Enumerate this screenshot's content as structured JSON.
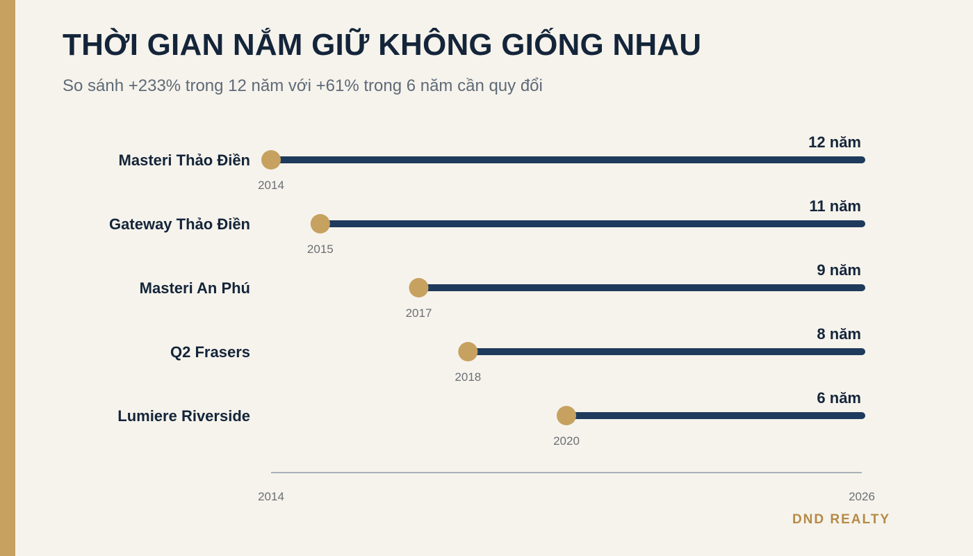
{
  "header": {
    "title": "THỜI GIAN NẮM GIỮ KHÔNG GIỐNG NHAU",
    "subtitle": "So sánh +233% trong 12 năm với +61% trong 6 năm cần quy đổi"
  },
  "brand": "DND REALTY",
  "colors": {
    "background": "#f6f3ec",
    "accent_gold": "#c6a160",
    "bar_navy": "#1e3a5c",
    "text_dark": "#14253a",
    "text_muted": "#6b6f75",
    "axis": "#8d9aa8",
    "brand": "#b48a47"
  },
  "chart_data": {
    "type": "timeline-bar",
    "end_year": 2026,
    "xlim": [
      2014,
      2026
    ],
    "x_ticks": [
      "2014",
      "2026"
    ],
    "grid": false,
    "categories": [
      "Masteri Thảo Điền",
      "Gateway Thảo Điền",
      "Masteri An Phú",
      "Q2 Frasers",
      "Lumiere Riverside"
    ],
    "start_years": [
      2014,
      2015,
      2017,
      2018,
      2020
    ],
    "start_labels": [
      "2014",
      "2015",
      "2017",
      "2018",
      "2020"
    ],
    "duration_labels": [
      "12 năm",
      "11 năm",
      "9 năm",
      "8 năm",
      "6 năm"
    ]
  }
}
